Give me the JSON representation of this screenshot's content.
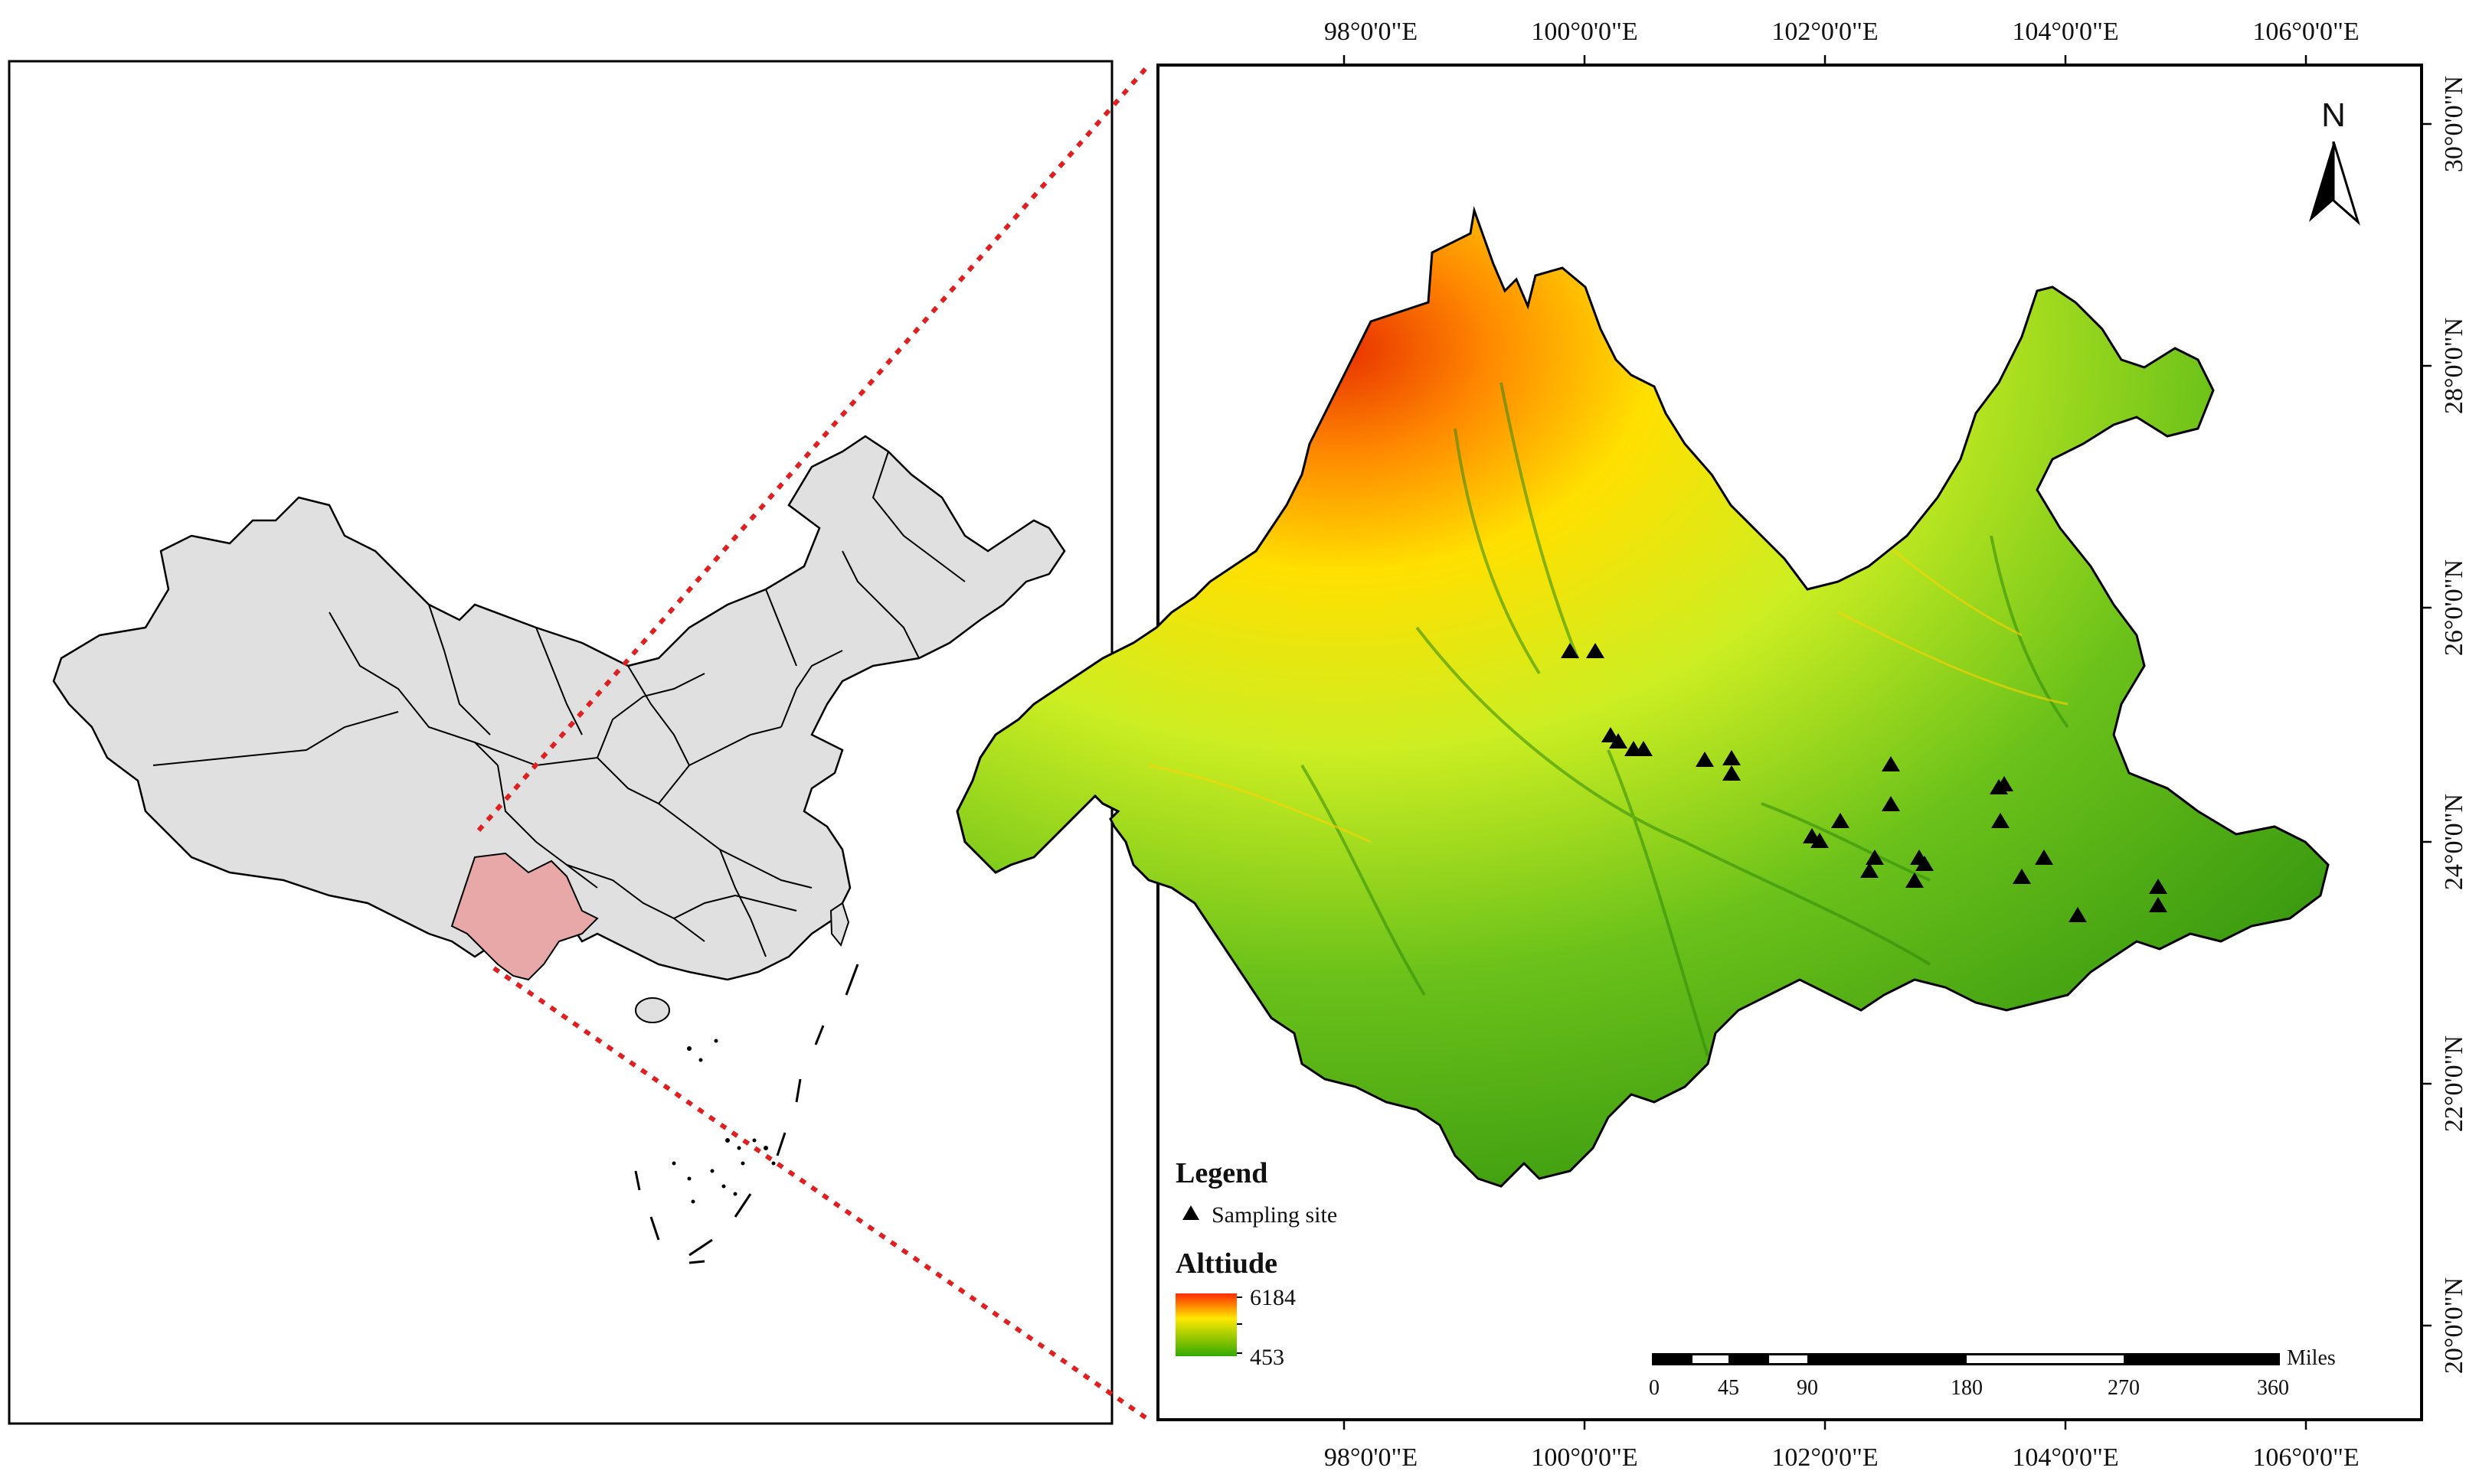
{
  "legend": {
    "title": "Legend",
    "site_label": "Sampling site",
    "altitude_title": "Alttiude",
    "altitude_max": "6184",
    "altitude_min": "453",
    "color_high": "#ff2a00",
    "color_mid": "#ffff00",
    "color_low": "#33aa00"
  },
  "north_arrow": {
    "label": "N"
  },
  "scale_bar": {
    "unit": "Miles",
    "labels": [
      "0",
      "45",
      "90",
      "180",
      "270",
      "360"
    ]
  },
  "axes": {
    "lon_labels": [
      "98°0'0\"E",
      "100°0'0\"E",
      "102°0'0\"E",
      "104°0'0\"E",
      "106°0'0\"E"
    ],
    "lat_labels": [
      "30°0'0\"N",
      "28°0'0\"N",
      "26°0'0\"N",
      "24°0'0\"N",
      "22°0'0\"N",
      "20°0'0\"N"
    ]
  },
  "colors": {
    "china_fill": "#e0e0e0",
    "highlight_fill": "#e8a8a8",
    "connector": "#e02020"
  }
}
